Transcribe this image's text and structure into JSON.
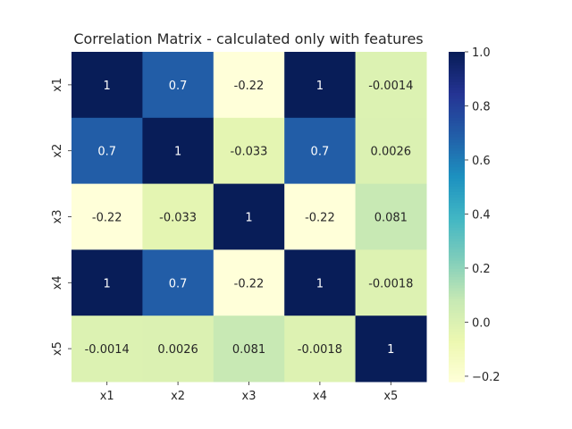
{
  "chart_data": {
    "type": "heatmap",
    "title": "Correlation Matrix - calculated only with features",
    "xlabel": "",
    "ylabel": "",
    "row_labels": [
      "x1",
      "x2",
      "x3",
      "x4",
      "x5"
    ],
    "col_labels": [
      "x1",
      "x2",
      "x3",
      "x4",
      "x5"
    ],
    "values": [
      [
        1,
        0.7,
        -0.22,
        1,
        -0.0014
      ],
      [
        0.7,
        1,
        -0.033,
        0.7,
        0.0026
      ],
      [
        -0.22,
        -0.033,
        1,
        -0.22,
        0.081
      ],
      [
        1,
        0.7,
        -0.22,
        1,
        -0.0018
      ],
      [
        -0.0014,
        0.0026,
        0.081,
        -0.0018,
        1
      ]
    ],
    "cell_labels": [
      [
        "1",
        "0.7",
        "-0.22",
        "1",
        "-0.0014"
      ],
      [
        "0.7",
        "1",
        "-0.033",
        "0.7",
        "0.0026"
      ],
      [
        "-0.22",
        "-0.033",
        "1",
        "-0.22",
        "0.081"
      ],
      [
        "1",
        "0.7",
        "-0.22",
        "1",
        "-0.0018"
      ],
      [
        "-0.0014",
        "0.0026",
        "0.081",
        "-0.0018",
        "1"
      ]
    ],
    "colormap": "YlGnBu",
    "colorbar": {
      "vmin": -0.22,
      "vmax": 1.0,
      "ticks": [
        -0.2,
        0.0,
        0.2,
        0.4,
        0.6,
        0.8,
        1.0
      ],
      "tick_labels": [
        "−0.2",
        "0.0",
        "0.2",
        "0.4",
        "0.6",
        "0.8",
        "1.0"
      ]
    },
    "grid": false,
    "legend": "colorbar-right"
  }
}
